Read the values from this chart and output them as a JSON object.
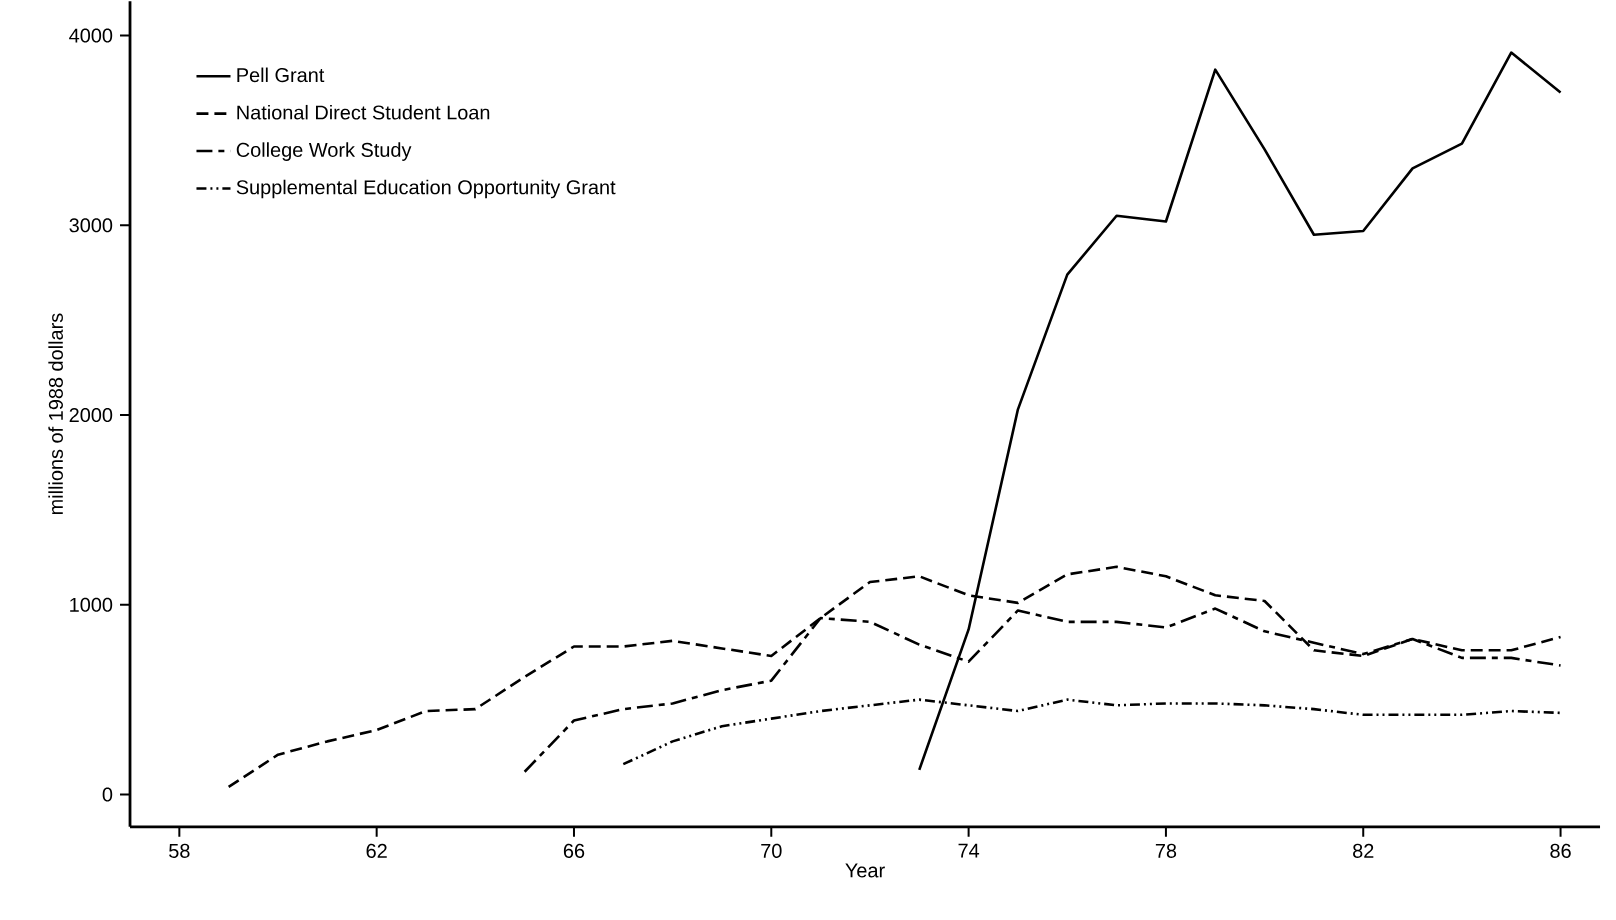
{
  "chart_data": {
    "type": "line",
    "xlabel": "Year",
    "ylabel": "millions of 1988 dollars",
    "xlim": [
      57,
      86.8
    ],
    "ylim": [
      -170,
      4180
    ],
    "xticks": [
      58,
      62,
      66,
      70,
      74,
      78,
      82,
      86
    ],
    "yticks": [
      0,
      1000,
      2000,
      3000,
      4000
    ],
    "legend": "top left",
    "grid": false,
    "marker": "none",
    "series": [
      {
        "name": "Pell Grant",
        "color": "#000000",
        "line_style": "solid",
        "x": [
          73,
          74,
          75,
          76,
          77,
          78,
          79,
          80,
          81,
          82,
          83,
          84,
          85,
          86
        ],
        "values": [
          130,
          870,
          2030,
          2740,
          3050,
          3020,
          3820,
          3400,
          2950,
          2970,
          3300,
          3430,
          3910,
          3700
        ]
      },
      {
        "name": "National Direct Student Loan",
        "color": "#000000",
        "line_style": "dashed",
        "x": [
          59,
          60,
          61,
          62,
          63,
          64,
          65,
          66,
          67,
          68,
          69,
          70,
          71,
          72,
          73,
          74,
          75,
          76,
          77,
          78,
          79,
          80,
          81,
          82,
          83,
          84,
          85,
          86
        ],
        "values": [
          40,
          210,
          280,
          340,
          440,
          450,
          620,
          780,
          780,
          810,
          770,
          730,
          930,
          1120,
          1150,
          1050,
          1010,
          1160,
          1200,
          1150,
          1050,
          1020,
          760,
          730,
          820,
          760,
          760,
          830
        ]
      },
      {
        "name": "College Work Study",
        "color": "#000000",
        "line_style": "dashdot",
        "x": [
          65,
          66,
          67,
          68,
          69,
          70,
          71,
          72,
          73,
          74,
          75,
          76,
          77,
          78,
          79,
          80,
          81,
          82,
          83,
          84,
          85,
          86
        ],
        "values": [
          120,
          390,
          450,
          480,
          550,
          600,
          930,
          910,
          790,
          700,
          970,
          910,
          910,
          880,
          980,
          860,
          800,
          740,
          820,
          720,
          720,
          680
        ]
      },
      {
        "name": "Supplemental Education Opportunity Grant",
        "color": "#000000",
        "line_style": "dashdotdot",
        "x": [
          67,
          68,
          69,
          70,
          71,
          72,
          73,
          74,
          75,
          76,
          77,
          78,
          79,
          80,
          81,
          82,
          83,
          84,
          85,
          86
        ],
        "values": [
          160,
          280,
          360,
          400,
          440,
          470,
          500,
          470,
          440,
          500,
          470,
          480,
          480,
          470,
          450,
          420,
          420,
          420,
          440,
          430
        ]
      }
    ]
  }
}
